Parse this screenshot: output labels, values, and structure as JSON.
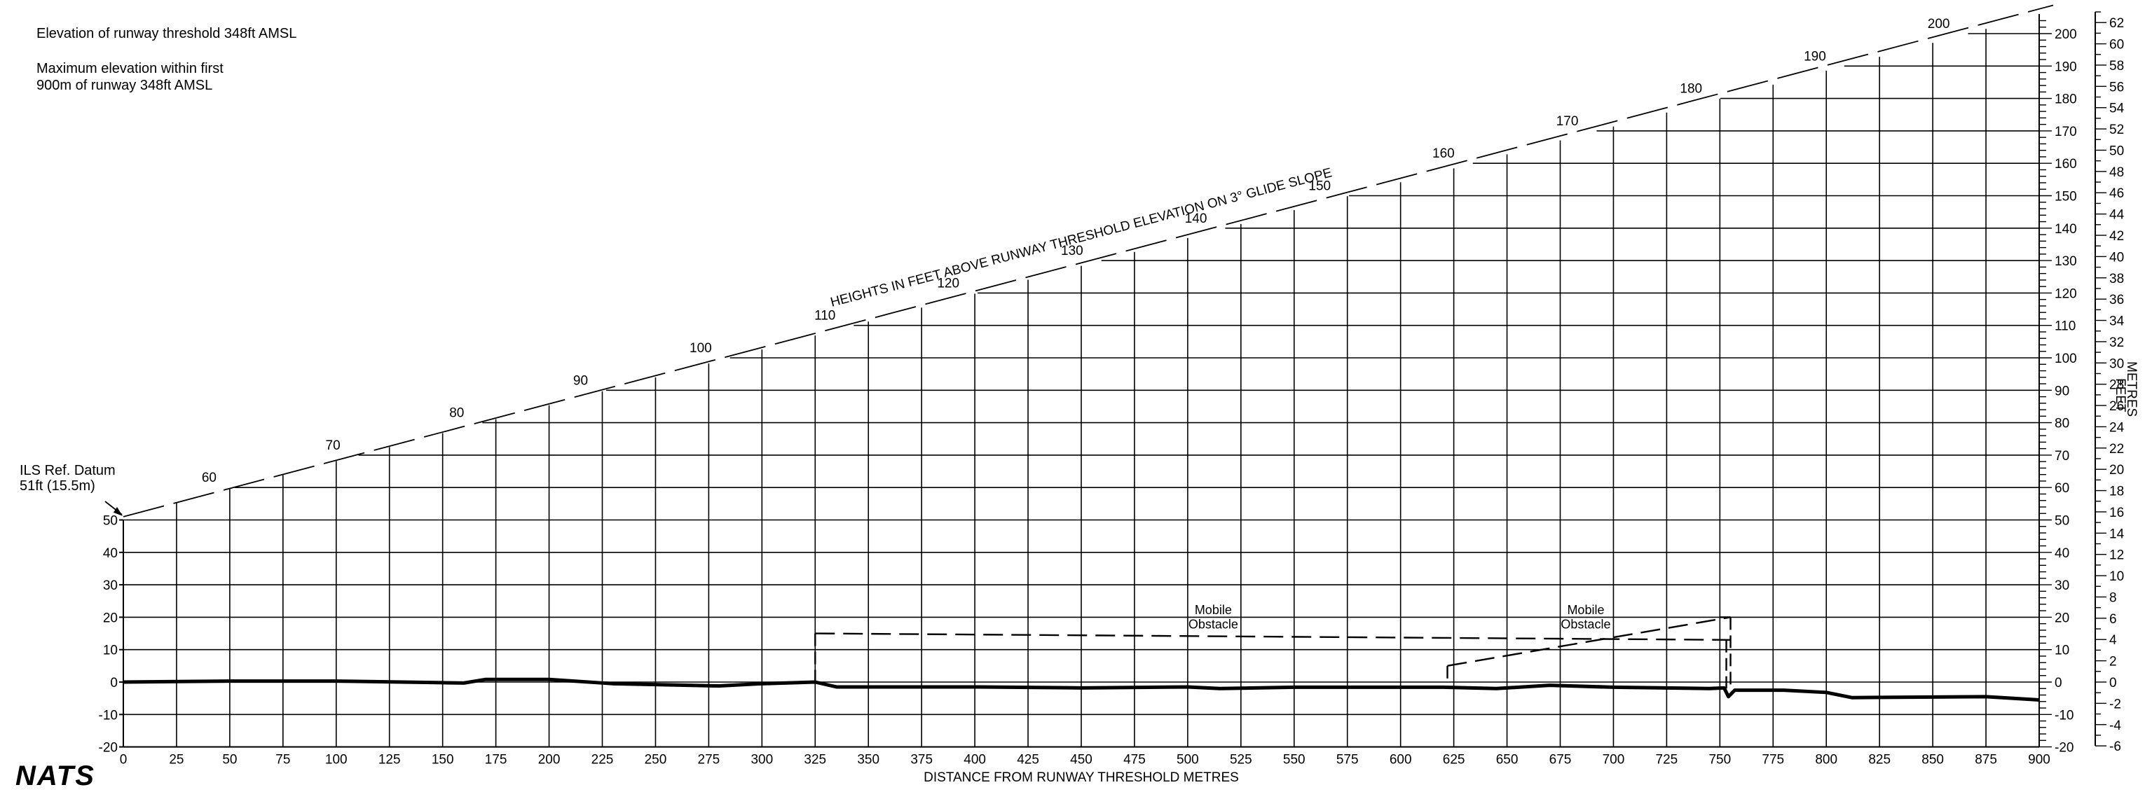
{
  "info": {
    "threshold_elevation": "Elevation of runway threshold 348ft AMSL",
    "max_elevation_line1": "Maximum elevation within first",
    "max_elevation_line2": "900m of runway 348ft AMSL"
  },
  "ils_datum": {
    "line1": "ILS Ref. Datum",
    "line2": "51ft (15.5m)"
  },
  "glide_slope_label": "HEIGHTS IN FEET ABOVE RUNWAY THRESHOLD ELEVATION ON 3° GLIDE SLOPE",
  "glide_slope_marks": [
    60,
    70,
    80,
    90,
    100,
    110,
    120,
    130,
    140,
    150,
    160,
    170,
    180,
    190,
    200
  ],
  "x_axis": {
    "label": "DISTANCE FROM RUNWAY THRESHOLD METRES",
    "ticks": [
      0,
      25,
      50,
      75,
      100,
      125,
      150,
      175,
      200,
      225,
      250,
      275,
      300,
      325,
      350,
      375,
      400,
      425,
      450,
      475,
      500,
      525,
      550,
      575,
      600,
      625,
      650,
      675,
      700,
      725,
      750,
      775,
      800,
      825,
      850,
      875,
      900
    ]
  },
  "y_left": {
    "ticks": [
      -20,
      -10,
      0,
      10,
      20,
      30,
      40,
      50
    ]
  },
  "y_right_feet": {
    "label": "FEET",
    "ticks": [
      -20,
      -10,
      0,
      10,
      20,
      30,
      40,
      50,
      60,
      70,
      80,
      90,
      100,
      110,
      120,
      130,
      140,
      150,
      160,
      170,
      180,
      190,
      200
    ]
  },
  "y_right_metres": {
    "label": "METRES",
    "ticks": [
      -6,
      -4,
      -2,
      0,
      2,
      4,
      6,
      8,
      10,
      12,
      14,
      16,
      18,
      20,
      22,
      24,
      26,
      28,
      30,
      32,
      34,
      36,
      38,
      40,
      42,
      44,
      46,
      48,
      50,
      52,
      54,
      56,
      58,
      60,
      62
    ]
  },
  "obstacles": [
    {
      "line1": "Mobile",
      "line2": "Obstacle",
      "x_range_m": [
        325,
        755
      ],
      "height_ft": [
        15,
        13
      ]
    },
    {
      "line1": "Mobile",
      "line2": "Obstacle",
      "x_range_m": [
        622,
        755
      ],
      "height_ft": [
        5,
        20
      ]
    }
  ],
  "terrain_profile": [
    [
      0,
      0
    ],
    [
      50,
      0.3
    ],
    [
      100,
      0.3
    ],
    [
      150,
      -0.2
    ],
    [
      160,
      -0.3
    ],
    [
      170,
      0.8
    ],
    [
      200,
      0.8
    ],
    [
      230,
      -0.5
    ],
    [
      280,
      -1.2
    ],
    [
      300,
      -0.5
    ],
    [
      325,
      0
    ],
    [
      335,
      -1.5
    ],
    [
      400,
      -1.5
    ],
    [
      450,
      -1.8
    ],
    [
      500,
      -1.5
    ],
    [
      515,
      -2
    ],
    [
      550,
      -1.6
    ],
    [
      620,
      -1.6
    ],
    [
      645,
      -2
    ],
    [
      670,
      -1
    ],
    [
      700,
      -1.6
    ],
    [
      745,
      -2
    ],
    [
      752,
      -1.8
    ],
    [
      754,
      -4.5
    ],
    [
      757,
      -2.5
    ],
    [
      780,
      -2.5
    ],
    [
      800,
      -3.2
    ],
    [
      812,
      -4.8
    ],
    [
      875,
      -4.5
    ],
    [
      900,
      -5.5
    ]
  ],
  "logo": "NATS"
}
